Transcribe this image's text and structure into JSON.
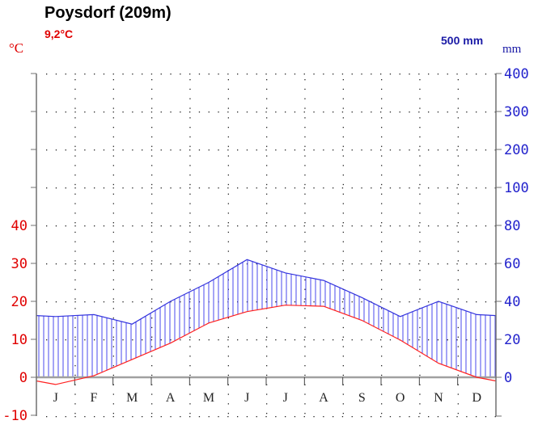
{
  "header": {
    "title": "Poysdorf (209m)",
    "mean_temperature": "9,2°C",
    "annual_precipitation": "500 mm"
  },
  "axes": {
    "left_unit": "°C",
    "right_unit": "mm",
    "left_ticks": [
      "40",
      "30",
      "20",
      "10",
      "0",
      "-10"
    ],
    "right_ticks": [
      "400",
      "300",
      "200",
      "100",
      "80",
      "60",
      "40",
      "20",
      "0"
    ]
  },
  "months": [
    "J",
    "F",
    "M",
    "A",
    "M",
    "J",
    "J",
    "A",
    "S",
    "O",
    "N",
    "D"
  ],
  "colors": {
    "temperature": "#ff2020",
    "precipitation": "#3333dd",
    "hatch": "#4a4aee",
    "zero_line": "#a0a0a0",
    "axis": "#707070",
    "left_labels": "#e00000",
    "right_labels": "#2222cc"
  },
  "chart_data": {
    "type": "line",
    "title": "Poysdorf (209m)",
    "subtitle": "9,2°C | 500 mm",
    "categories": [
      "J",
      "F",
      "M",
      "A",
      "M",
      "J",
      "J",
      "A",
      "S",
      "O",
      "N",
      "D"
    ],
    "series": [
      {
        "name": "Temperature (°C)",
        "axis": "left",
        "color": "#ff2020",
        "values": [
          -1.9,
          0.4,
          4.7,
          9.0,
          14.3,
          17.3,
          19.0,
          18.7,
          15.0,
          9.8,
          3.7,
          0.0
        ]
      },
      {
        "name": "Precipitation (mm)",
        "axis": "right",
        "color": "#3333dd",
        "values": [
          32,
          33,
          28,
          40,
          50,
          62,
          55,
          51,
          42,
          32,
          40,
          33
        ]
      }
    ],
    "xlabel": "",
    "ylabel_left": "°C",
    "ylabel_right": "mm",
    "ylim_left": [
      -10,
      40
    ],
    "ylim_right": [
      0,
      400
    ],
    "right_axis_note": "linear 0–100 mm (2 mm per °C), compressed scale 100–400 mm",
    "grid": "dotted",
    "annotations": [
      "9,2°C",
      "500 mm"
    ],
    "hatched_area": "humid period (precipitation above temperature curve)"
  }
}
